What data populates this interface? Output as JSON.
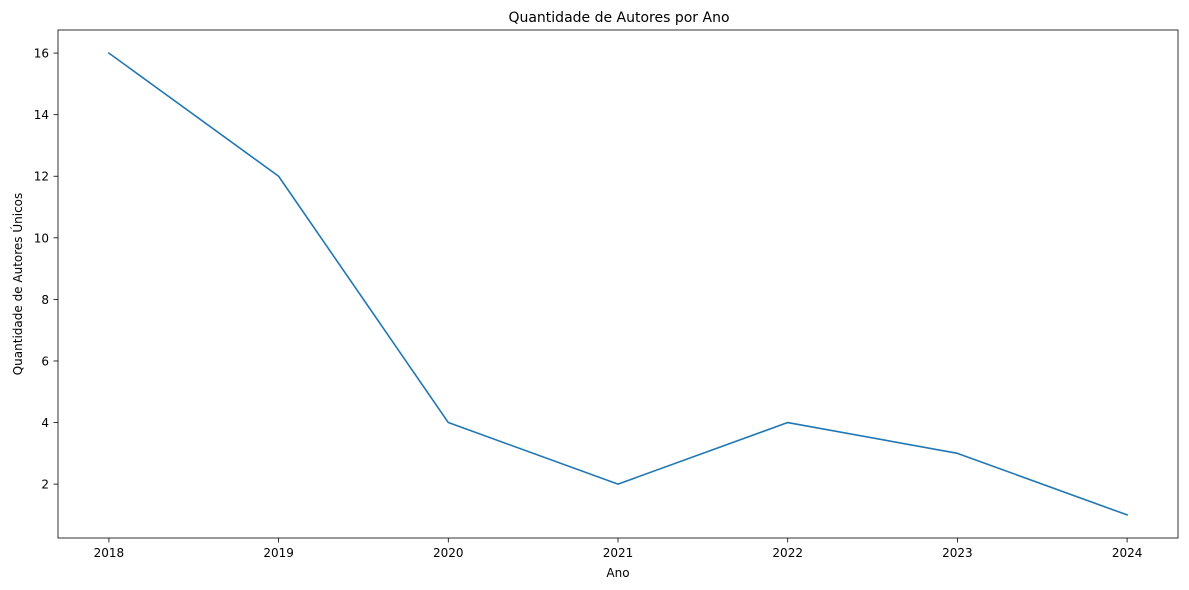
{
  "chart_data": {
    "type": "line",
    "title": "Quantidade de Autores por Ano",
    "xlabel": "Ano",
    "ylabel": "Quantidade de Autores Únicos",
    "x": [
      2018,
      2019,
      2020,
      2021,
      2022,
      2023,
      2024
    ],
    "x_tick_labels": [
      "2018",
      "2019",
      "2020",
      "2021",
      "2022",
      "2023",
      "2024"
    ],
    "y": [
      16,
      12,
      4,
      2,
      4,
      3,
      1
    ],
    "y_ticks": [
      2,
      4,
      6,
      8,
      10,
      12,
      14,
      16
    ],
    "y_tick_labels": [
      "2",
      "4",
      "6",
      "8",
      "10",
      "12",
      "14",
      "16"
    ],
    "xlim": [
      2017.7,
      2024.3
    ],
    "ylim": [
      0.25,
      16.75
    ],
    "grid": false,
    "legend": "none",
    "colors": {
      "line": "#1f77b4"
    }
  }
}
